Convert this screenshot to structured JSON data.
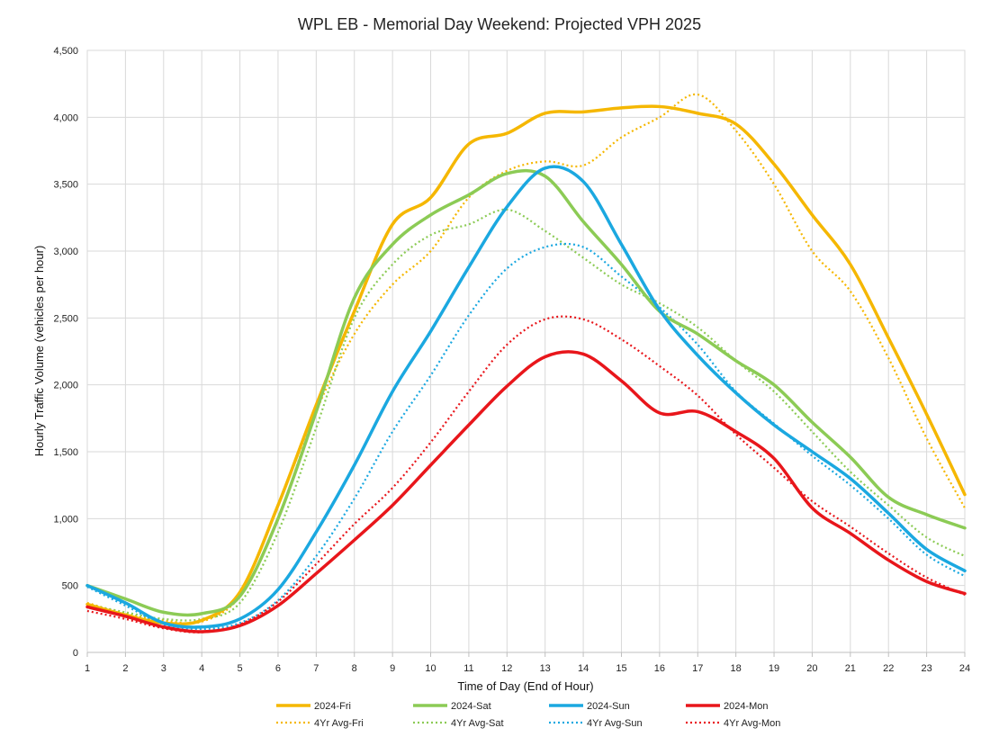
{
  "chart_data": {
    "type": "line",
    "title": "WPL EB  - Memorial Day Weekend: Projected VPH 2025",
    "xlabel": "Time of Day (End of Hour)",
    "ylabel": "Hourly Traffic Volume (vehicles per hour)",
    "x": [
      1,
      2,
      3,
      4,
      5,
      6,
      7,
      8,
      9,
      10,
      11,
      12,
      13,
      14,
      15,
      16,
      17,
      18,
      19,
      20,
      21,
      22,
      23,
      24
    ],
    "xlim": [
      1,
      24
    ],
    "ylim": [
      0,
      4500
    ],
    "yticks": [
      0,
      500,
      1000,
      1500,
      2000,
      2500,
      3000,
      3500,
      4000,
      4500
    ],
    "ytick_labels": [
      "0",
      "500",
      "1,000",
      "1,500",
      "2,000",
      "2,500",
      "3,000",
      "3,500",
      "4,000",
      "4,500"
    ],
    "grid": true,
    "legend_position": "bottom",
    "series": [
      {
        "name": "2024-Fri",
        "color": "#F5B700",
        "style": "solid",
        "values": [
          360,
          280,
          220,
          240,
          450,
          1100,
          1850,
          2550,
          3200,
          3400,
          3800,
          3880,
          4030,
          4040,
          4070,
          4080,
          4030,
          3950,
          3650,
          3270,
          2900,
          2350,
          1780,
          1180
        ]
      },
      {
        "name": "2024-Sat",
        "color": "#8CCB55",
        "style": "solid",
        "values": [
          500,
          400,
          300,
          290,
          420,
          1000,
          1800,
          2650,
          3050,
          3270,
          3420,
          3580,
          3560,
          3220,
          2900,
          2550,
          2380,
          2180,
          2000,
          1720,
          1460,
          1160,
          1030,
          930
        ]
      },
      {
        "name": "2024-Sun",
        "color": "#1BA8E0",
        "style": "solid",
        "values": [
          500,
          370,
          220,
          190,
          250,
          470,
          900,
          1400,
          1950,
          2400,
          2880,
          3330,
          3620,
          3520,
          3050,
          2560,
          2220,
          1940,
          1700,
          1500,
          1300,
          1040,
          770,
          610
        ]
      },
      {
        "name": "2024-Mon",
        "color": "#E8161B",
        "style": "solid",
        "values": [
          340,
          270,
          190,
          155,
          200,
          350,
          590,
          840,
          1100,
          1400,
          1700,
          1990,
          2210,
          2230,
          2030,
          1790,
          1800,
          1650,
          1450,
          1080,
          890,
          690,
          530,
          440
        ]
      },
      {
        "name": "4Yr Avg-Fri",
        "color": "#F5B700",
        "style": "dotted",
        "values": [
          370,
          290,
          240,
          230,
          420,
          1000,
          1800,
          2380,
          2750,
          3000,
          3400,
          3600,
          3670,
          3640,
          3850,
          4000,
          4170,
          3900,
          3500,
          3000,
          2700,
          2200,
          1600,
          1080
        ]
      },
      {
        "name": "4Yr Avg-Sat",
        "color": "#8CCB55",
        "style": "dotted",
        "values": [
          360,
          300,
          250,
          250,
          370,
          900,
          1680,
          2500,
          2900,
          3120,
          3200,
          3310,
          3150,
          2950,
          2750,
          2610,
          2430,
          2180,
          1950,
          1650,
          1350,
          1100,
          860,
          720
        ]
      },
      {
        "name": "4Yr Avg-Sun",
        "color": "#1BA8E0",
        "style": "dotted",
        "values": [
          490,
          350,
          210,
          175,
          220,
          390,
          720,
          1150,
          1650,
          2070,
          2520,
          2870,
          3030,
          3030,
          2810,
          2580,
          2300,
          1950,
          1710,
          1470,
          1250,
          1000,
          730,
          570
        ]
      },
      {
        "name": "4Yr Avg-Mon",
        "color": "#E8161B",
        "style": "dotted",
        "values": [
          310,
          250,
          180,
          150,
          210,
          380,
          660,
          960,
          1230,
          1570,
          1950,
          2300,
          2490,
          2490,
          2340,
          2140,
          1920,
          1630,
          1380,
          1130,
          940,
          740,
          560,
          430
        ]
      }
    ]
  }
}
